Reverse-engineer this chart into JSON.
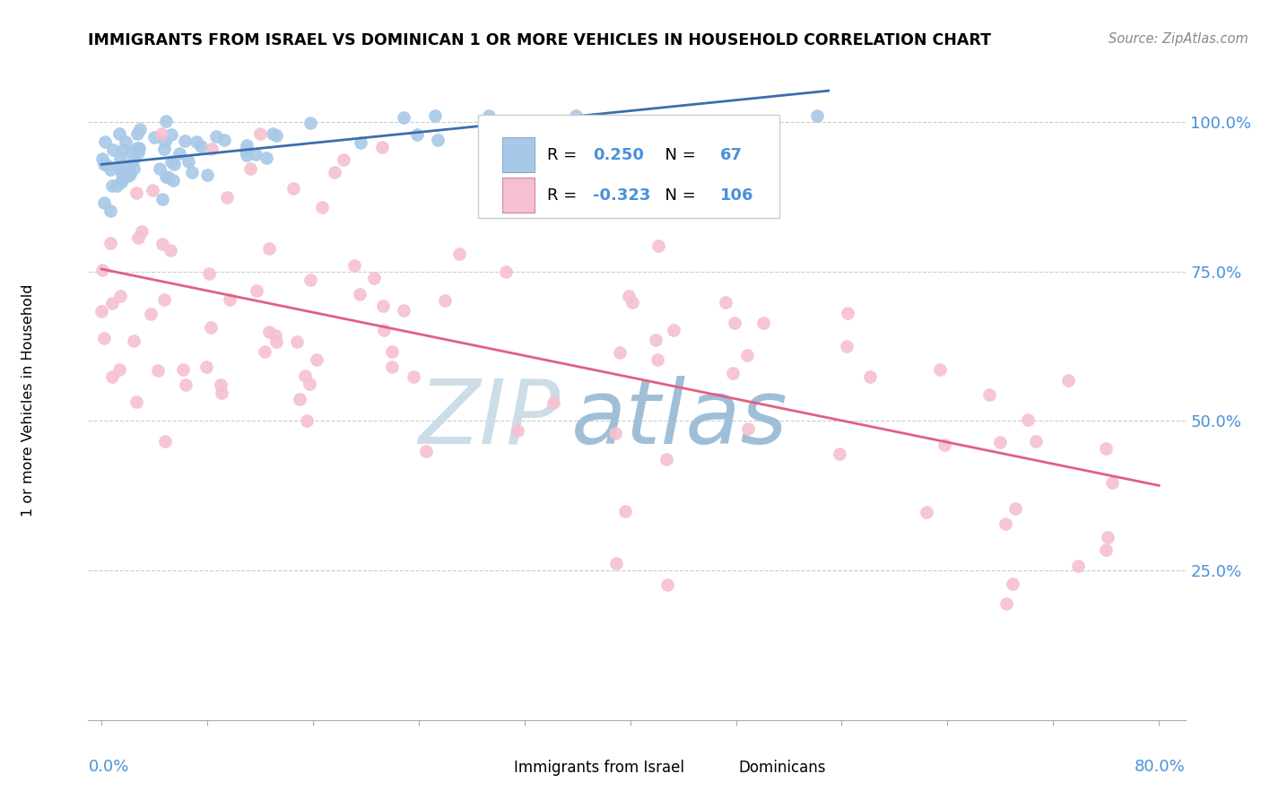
{
  "title": "IMMIGRANTS FROM ISRAEL VS DOMINICAN 1 OR MORE VEHICLES IN HOUSEHOLD CORRELATION CHART",
  "source": "Source: ZipAtlas.com",
  "ylabel_label": "1 or more Vehicles in Household",
  "legend_israel": "Immigrants from Israel",
  "legend_dominican": "Dominicans",
  "R_israel": 0.25,
  "N_israel": 67,
  "R_dominican": -0.323,
  "N_dominican": 106,
  "israel_color": "#a8c8e8",
  "dominican_color": "#f5c0d0",
  "israel_line_color": "#3a6faa",
  "dominican_line_color": "#e06080",
  "watermark_zip": "ZIP",
  "watermark_atlas": "atlas",
  "watermark_color_zip": "#ccdde8",
  "watermark_color_atlas": "#9fbfd8",
  "xmin": 0.0,
  "xmax": 0.8,
  "ymin": 0.0,
  "ymax": 1.05,
  "yticks": [
    0.25,
    0.5,
    0.75,
    1.0
  ],
  "ytick_labels": [
    "25.0%",
    "50.0%",
    "75.0%",
    "100.0%"
  ],
  "tick_color": "#4a90d9"
}
